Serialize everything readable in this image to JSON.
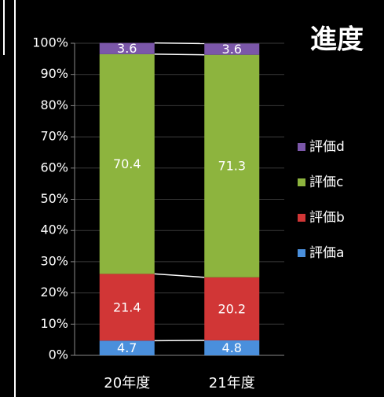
{
  "chart_data": {
    "type": "stacked_bar",
    "title": "進度",
    "categories": [
      "20年度",
      "21年度"
    ],
    "series": [
      {
        "name": "評価a",
        "color": "#4a8fdc",
        "values": [
          4.7,
          4.8
        ]
      },
      {
        "name": "評価b",
        "color": "#d13636",
        "values": [
          21.4,
          20.2
        ]
      },
      {
        "name": "評価c",
        "color": "#8db43e",
        "values": [
          70.4,
          71.3
        ]
      },
      {
        "name": "評価d",
        "color": "#7b57a9",
        "values": [
          3.6,
          3.6
        ]
      }
    ],
    "ylim": [
      0,
      100
    ],
    "yticks": [
      {
        "value": 0,
        "label": "0%"
      },
      {
        "value": 10,
        "label": "10%"
      },
      {
        "value": 20,
        "label": "20%"
      },
      {
        "value": 30,
        "label": "30%"
      },
      {
        "value": 40,
        "label": "40%"
      },
      {
        "value": 50,
        "label": "50%"
      },
      {
        "value": 60,
        "label": "60%"
      },
      {
        "value": 70,
        "label": "70%"
      },
      {
        "value": 80,
        "label": "80%"
      },
      {
        "value": 90,
        "label": "90%"
      },
      {
        "value": 100,
        "label": "100%"
      }
    ],
    "grid": true,
    "legend": "right"
  }
}
